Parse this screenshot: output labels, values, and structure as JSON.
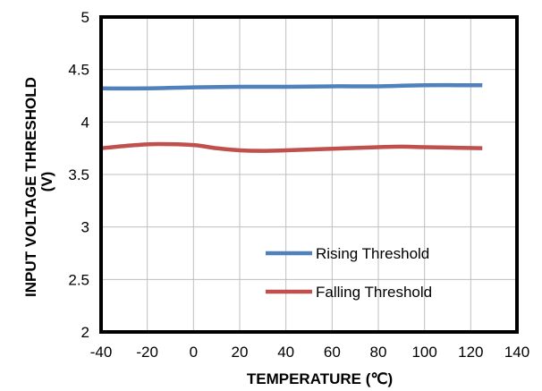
{
  "chart_data": {
    "type": "line",
    "xlabel": "TEMPERATURE  (℃)",
    "ylabel_line1": "INPUT  VOLTAGE  THRESHOLD",
    "ylabel_line2": "(V)",
    "xlim": [
      -40,
      140
    ],
    "ylim": [
      2,
      5
    ],
    "xticks": [
      -40,
      -20,
      0,
      20,
      40,
      60,
      80,
      100,
      120,
      140
    ],
    "yticks": [
      2,
      2.5,
      3,
      3.5,
      4,
      4.5,
      5
    ],
    "xtick_labels": [
      "-40",
      "-20",
      "0",
      "20",
      "40",
      "60",
      "80",
      "100",
      "120",
      "140"
    ],
    "ytick_labels": [
      "2",
      "2.5",
      "3",
      "3.5",
      "4",
      "4.5",
      "5"
    ],
    "grid": true,
    "legend_position": "bottom-right",
    "series": [
      {
        "name": "Rising Threshold",
        "color": "#4f81bd",
        "x": [
          -40,
          -20,
          0,
          20,
          40,
          60,
          80,
          100,
          125
        ],
        "y": [
          4.32,
          4.32,
          4.33,
          4.335,
          4.335,
          4.34,
          4.34,
          4.35,
          4.35
        ]
      },
      {
        "name": "Falling Threshold",
        "color": "#c0504d",
        "x": [
          -40,
          -25,
          -15,
          0,
          10,
          20,
          30,
          40,
          60,
          80,
          90,
          100,
          125
        ],
        "y": [
          3.75,
          3.78,
          3.79,
          3.78,
          3.75,
          3.73,
          3.725,
          3.73,
          3.745,
          3.76,
          3.765,
          3.76,
          3.75
        ]
      }
    ]
  }
}
